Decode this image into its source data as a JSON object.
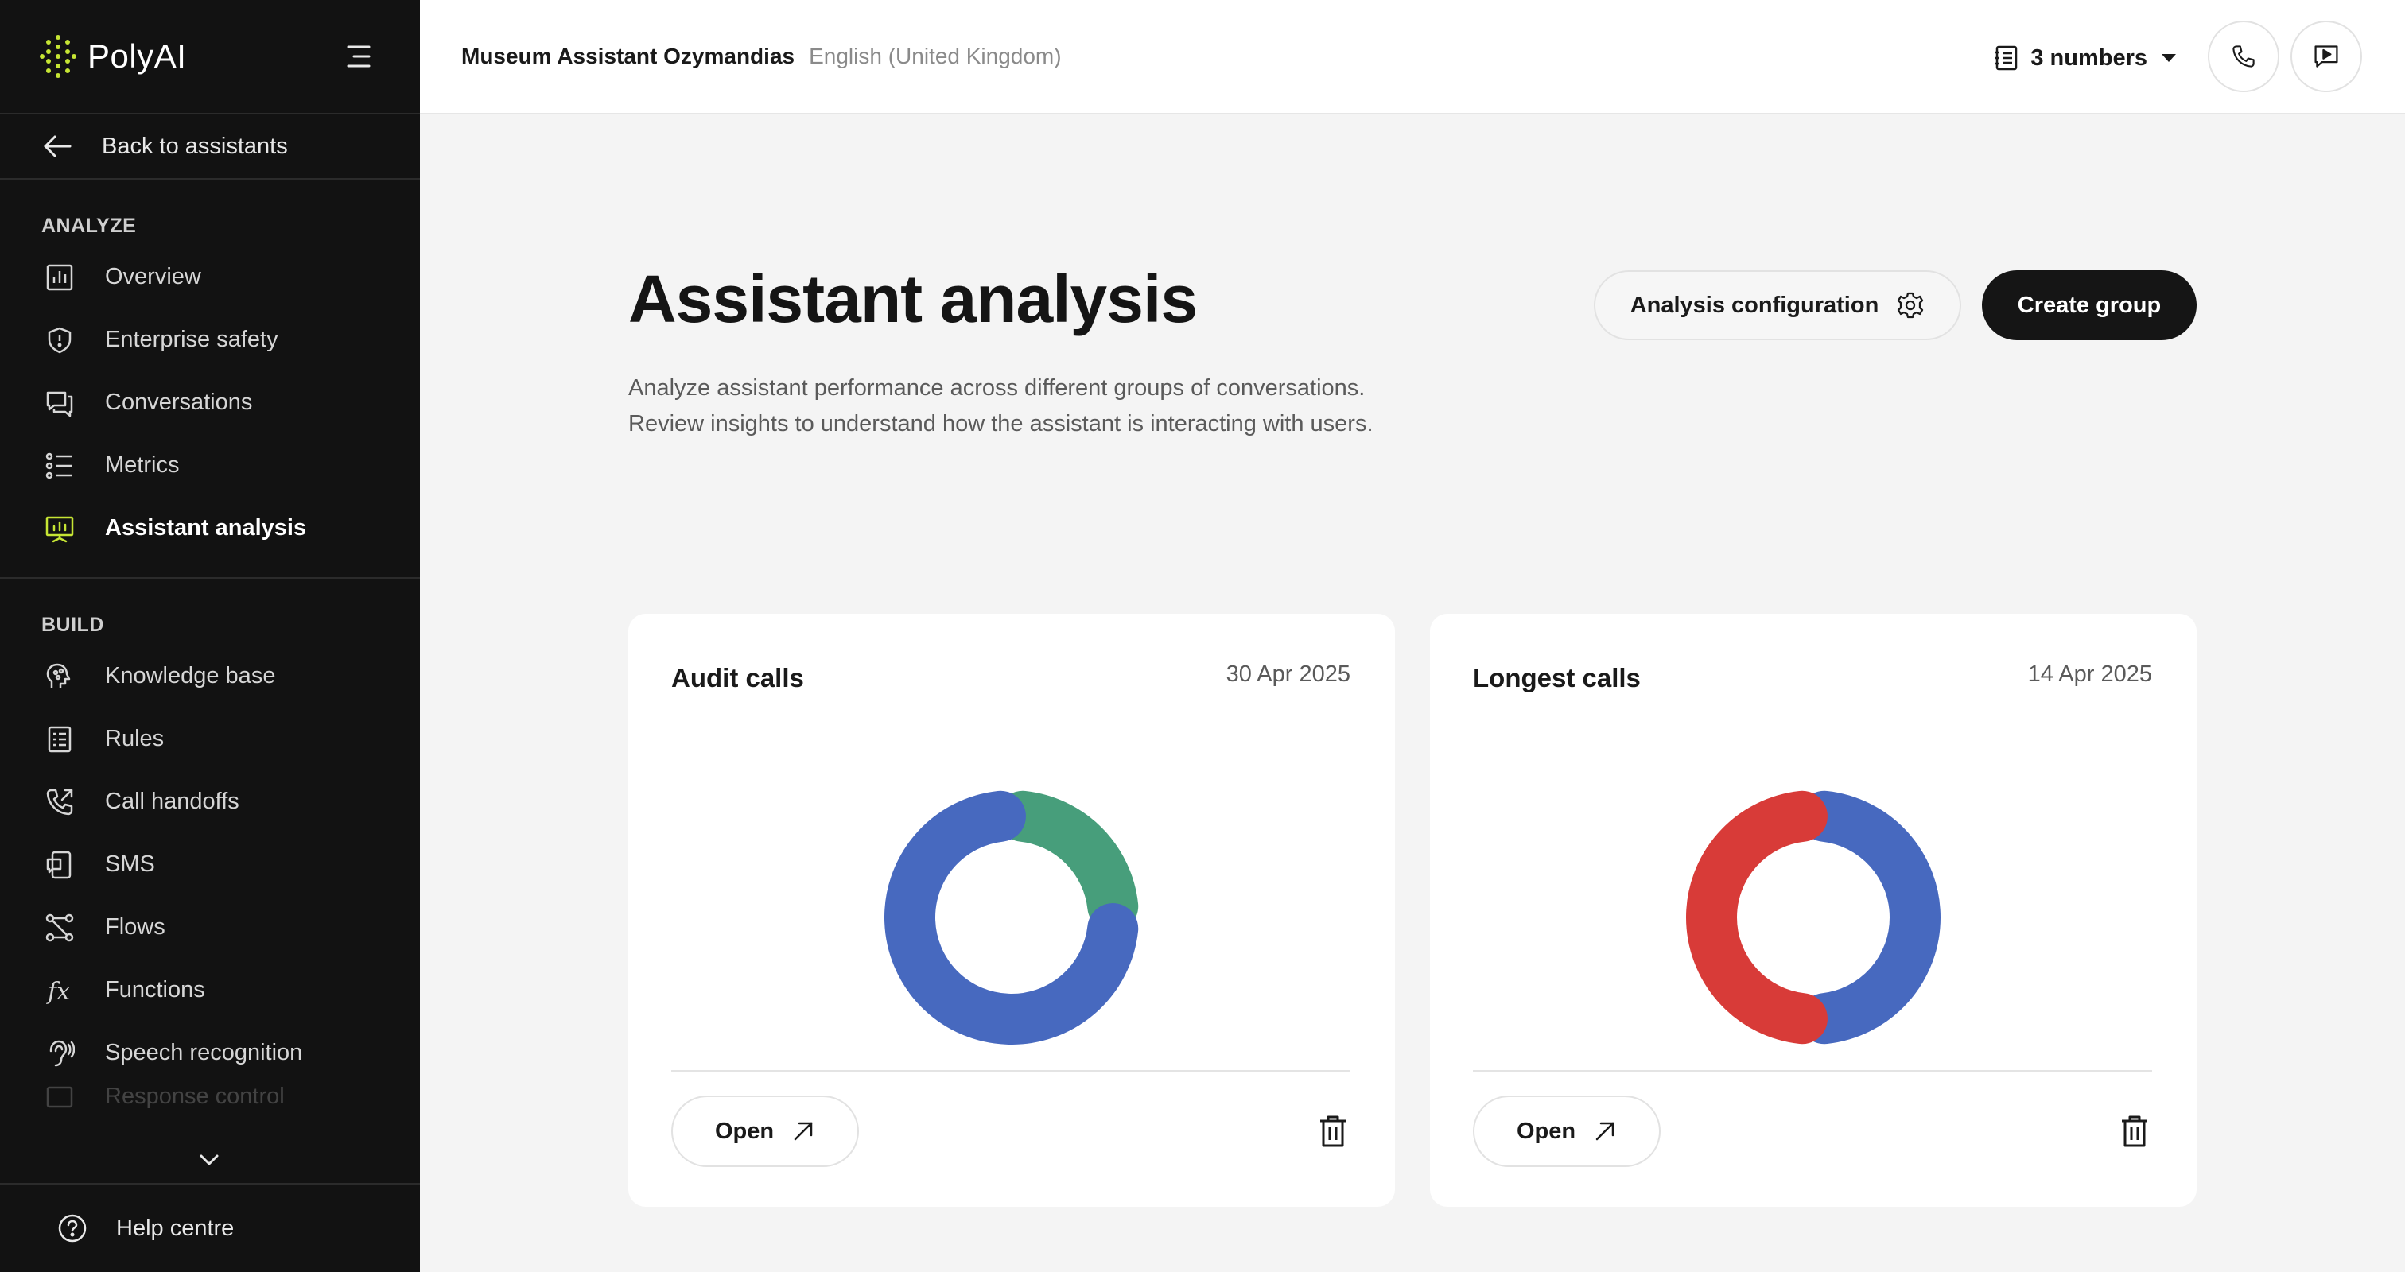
{
  "app": {
    "brand": "PolyAI"
  },
  "sidebar": {
    "back_label": "Back to assistants",
    "analyze_title": "ANALYZE",
    "analyze_items": [
      {
        "label": "Overview",
        "icon": "bar-chart-icon"
      },
      {
        "label": "Enterprise safety",
        "icon": "shield-icon"
      },
      {
        "label": "Conversations",
        "icon": "chat-bubbles-icon"
      },
      {
        "label": "Metrics",
        "icon": "list-icon"
      },
      {
        "label": "Assistant analysis",
        "icon": "presentation-chart-icon",
        "active": true
      }
    ],
    "build_title": "BUILD",
    "build_items": [
      {
        "label": "Knowledge base",
        "icon": "brain-icon"
      },
      {
        "label": "Rules",
        "icon": "rules-icon"
      },
      {
        "label": "Call handoffs",
        "icon": "phone-forward-icon"
      },
      {
        "label": "SMS",
        "icon": "sms-icon"
      },
      {
        "label": "Flows",
        "icon": "flows-icon"
      },
      {
        "label": "Functions",
        "icon": "function-icon"
      },
      {
        "label": "Speech recognition",
        "icon": "ear-icon"
      },
      {
        "label": "Response control",
        "icon": "response-icon"
      }
    ],
    "help_label": "Help centre"
  },
  "topbar": {
    "assistant_name": "Museum Assistant Ozymandias",
    "language": "English (United Kingdom)",
    "numbers_label": "3 numbers"
  },
  "main": {
    "title": "Assistant analysis",
    "description_line1": "Analyze assistant performance across different groups of conversations.",
    "description_line2": "Review insights to understand how the assistant is interacting with users.",
    "config_button": "Analysis configuration",
    "create_button": "Create group"
  },
  "cards": [
    {
      "title": "Audit calls",
      "date": "30 Apr 2025",
      "open_label": "Open",
      "segments": [
        {
          "value": 0.25,
          "color": "#479e7b"
        },
        {
          "value": 0.75,
          "color": "#4769bf"
        }
      ]
    },
    {
      "title": "Longest calls",
      "date": "14 Apr 2025",
      "open_label": "Open",
      "segments": [
        {
          "value": 0.5,
          "color": "#4769bf"
        },
        {
          "value": 0.5,
          "color": "#d83b38"
        }
      ]
    }
  ],
  "colors": {
    "accent_green": "#c6e534",
    "sidebar_bg": "#121212",
    "blue": "#4769bf",
    "green": "#479e7b",
    "red": "#d83b38"
  }
}
